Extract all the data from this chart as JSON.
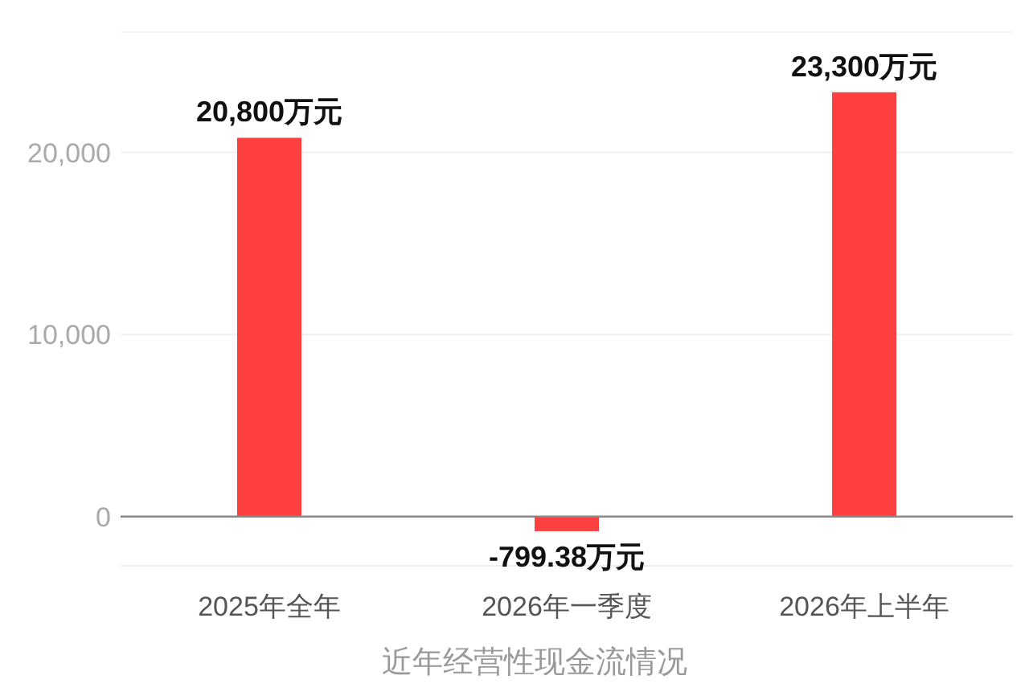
{
  "chart_data": {
    "type": "bar",
    "title": "近年经营性现金流情况",
    "categories": [
      "2025年全年",
      "2026年一季度",
      "2026年上半年"
    ],
    "values": [
      20800,
      -799.38,
      23300
    ],
    "value_labels": [
      "20,800万元",
      "-799.38万元",
      "23,300万元"
    ],
    "color": "#ff4040",
    "ylim": [
      -2700,
      26600
    ],
    "yticks": [
      {
        "value": 0,
        "label": "0"
      },
      {
        "value": 10000,
        "label": "10,000"
      },
      {
        "value": 20000,
        "label": "20,000"
      }
    ],
    "grid": "y"
  }
}
